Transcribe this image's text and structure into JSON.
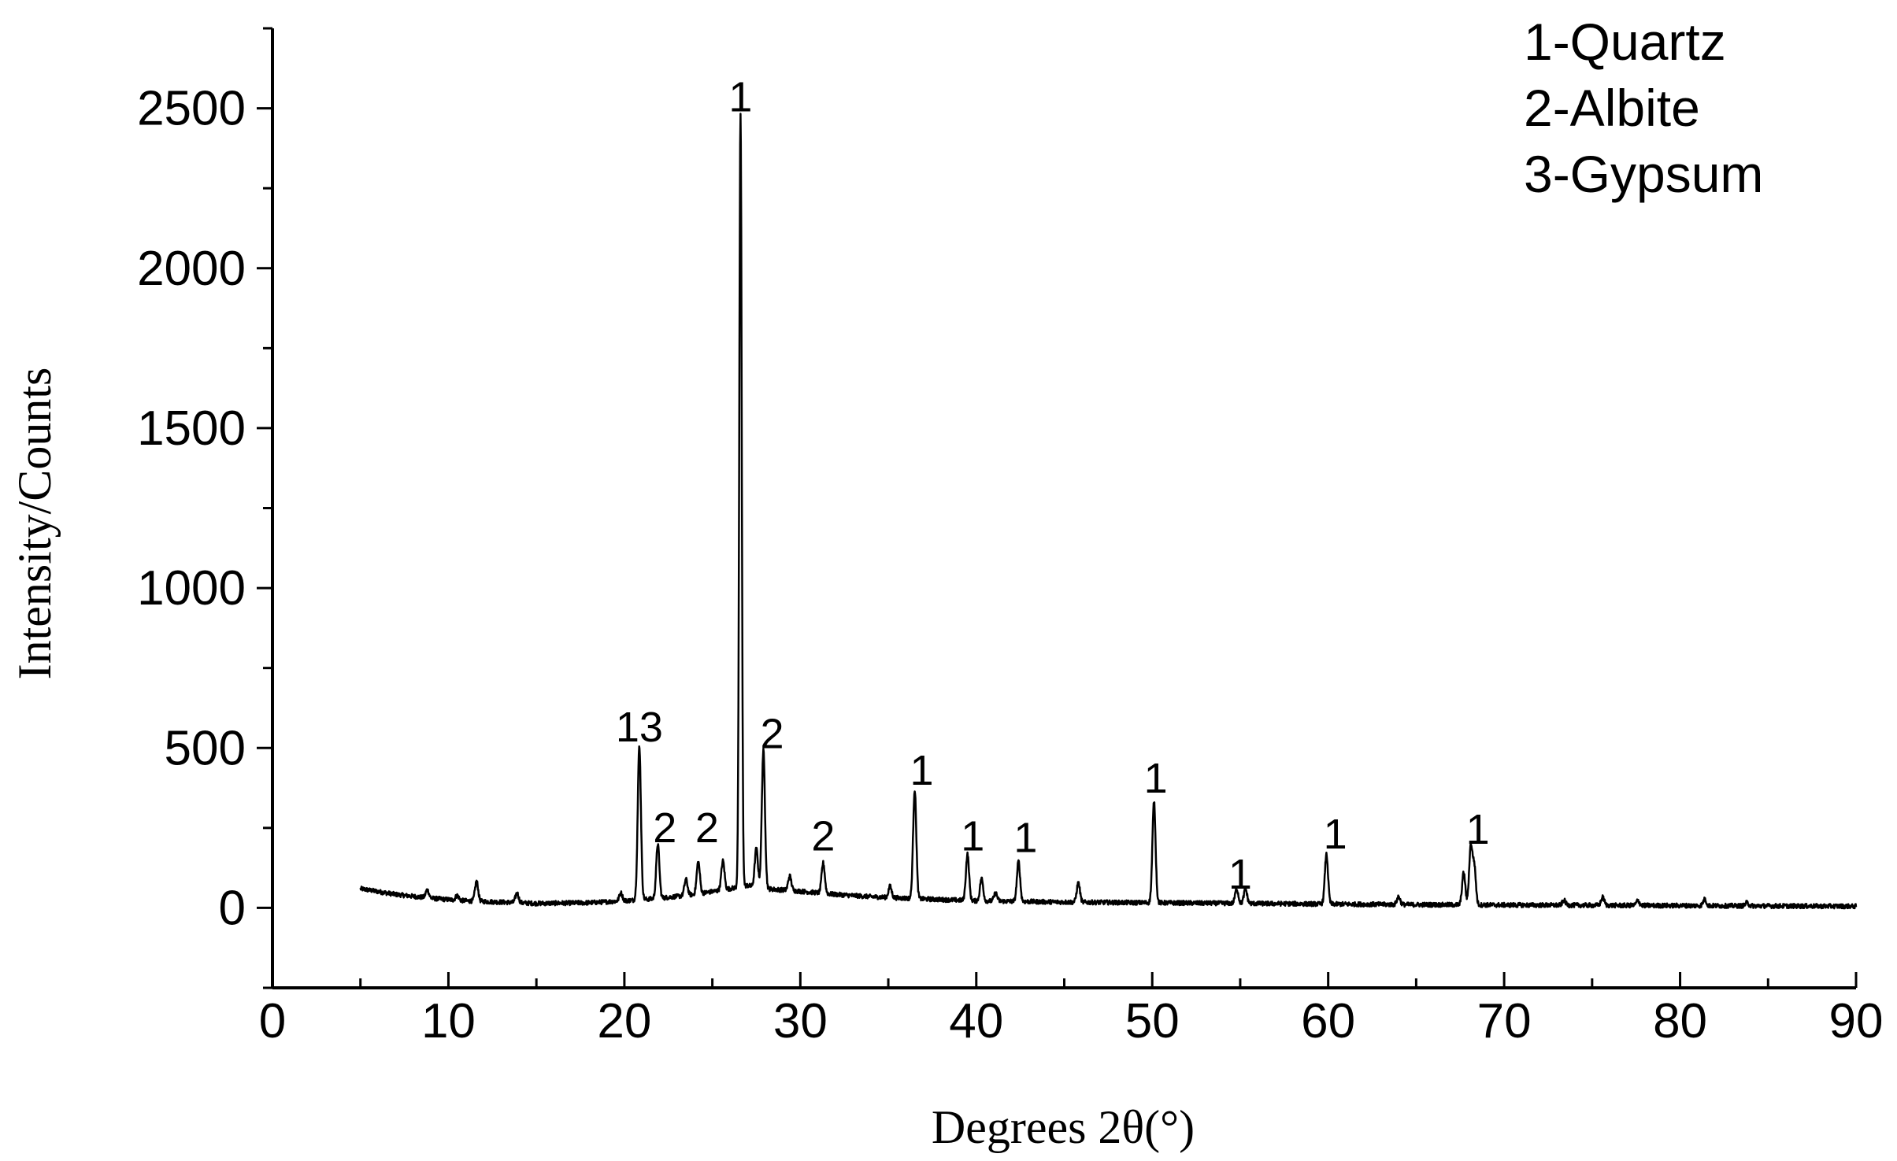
{
  "chart_data": {
    "type": "line",
    "xlabel": "Degrees 2θ(°)",
    "ylabel": "Intensity/Counts",
    "xlim": [
      0,
      90
    ],
    "ylim": [
      -250,
      2750
    ],
    "x_ticks": [
      0,
      10,
      20,
      30,
      40,
      50,
      60,
      70,
      80,
      90
    ],
    "x_tick_labels": [
      "0",
      "10",
      "20",
      "30",
      "40",
      "50",
      "60",
      "70",
      "80",
      "90"
    ],
    "x_minor_step": 5,
    "y_ticks": [
      0,
      500,
      1000,
      1500,
      2000,
      2500
    ],
    "y_tick_labels": [
      "0",
      "500",
      "1000",
      "1500",
      "2000",
      "2500"
    ],
    "y_minor_step": 250,
    "grid": false,
    "legend_position": "top-right",
    "legend": [
      "1-Quartz",
      "2-Albite",
      "3-Gypsum"
    ],
    "line_color": "#000000",
    "series": [
      {
        "baseline": [
          [
            5,
            60
          ],
          [
            7,
            42
          ],
          [
            9,
            30
          ],
          [
            11,
            22
          ],
          [
            13,
            18
          ],
          [
            15,
            14
          ],
          [
            18,
            16
          ],
          [
            20,
            22
          ],
          [
            22,
            30
          ],
          [
            24,
            42
          ],
          [
            26,
            60
          ],
          [
            27,
            70
          ],
          [
            28,
            60
          ],
          [
            30,
            52
          ],
          [
            32,
            42
          ],
          [
            34,
            35
          ],
          [
            36,
            30
          ],
          [
            38,
            26
          ],
          [
            40,
            22
          ],
          [
            45,
            18
          ],
          [
            50,
            16
          ],
          [
            55,
            14
          ],
          [
            60,
            12
          ],
          [
            65,
            10
          ],
          [
            70,
            9
          ],
          [
            75,
            8
          ],
          [
            80,
            7
          ],
          [
            85,
            6
          ],
          [
            90,
            5
          ]
        ],
        "peaks": [
          [
            8.8,
            25
          ],
          [
            10.5,
            15
          ],
          [
            11.6,
            62
          ],
          [
            13.9,
            30
          ],
          [
            19.8,
            25
          ],
          [
            20.85,
            480
          ],
          [
            21.9,
            170
          ],
          [
            23.5,
            50
          ],
          [
            24.2,
            100
          ],
          [
            25.6,
            90
          ],
          [
            26.6,
            2420
          ],
          [
            27.5,
            120
          ],
          [
            27.9,
            430
          ],
          [
            29.4,
            45
          ],
          [
            31.3,
            95
          ],
          [
            35.1,
            35
          ],
          [
            36.5,
            340
          ],
          [
            39.5,
            145
          ],
          [
            40.3,
            70
          ],
          [
            41.1,
            25
          ],
          [
            42.4,
            125
          ],
          [
            45.8,
            60
          ],
          [
            50.1,
            315
          ],
          [
            54.8,
            45
          ],
          [
            55.3,
            45
          ],
          [
            59.9,
            155
          ],
          [
            64.0,
            25
          ],
          [
            67.7,
            100
          ],
          [
            68.1,
            180
          ],
          [
            68.3,
            120
          ],
          [
            73.4,
            15
          ],
          [
            75.6,
            25
          ],
          [
            77.6,
            15
          ],
          [
            81.4,
            20
          ],
          [
            83.8,
            10
          ]
        ]
      }
    ],
    "peak_labels": [
      {
        "x": 20.85,
        "y": 520,
        "text": "13"
      },
      {
        "x": 22.3,
        "y": 205,
        "text": "2"
      },
      {
        "x": 24.7,
        "y": 205,
        "text": "2"
      },
      {
        "x": 26.6,
        "y": 2490,
        "text": "1"
      },
      {
        "x": 28.4,
        "y": 500,
        "text": "2"
      },
      {
        "x": 31.3,
        "y": 180,
        "text": "2"
      },
      {
        "x": 36.9,
        "y": 385,
        "text": "1"
      },
      {
        "x": 39.8,
        "y": 180,
        "text": "1"
      },
      {
        "x": 42.8,
        "y": 175,
        "text": "1"
      },
      {
        "x": 50.2,
        "y": 360,
        "text": "1"
      },
      {
        "x": 55.0,
        "y": 60,
        "text": "1"
      },
      {
        "x": 60.4,
        "y": 185,
        "text": "1"
      },
      {
        "x": 68.5,
        "y": 200,
        "text": "1"
      }
    ]
  }
}
